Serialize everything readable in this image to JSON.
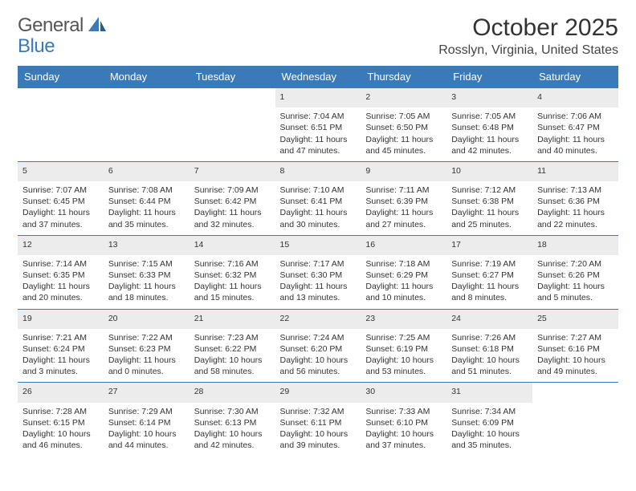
{
  "logo": {
    "general": "General",
    "blue": "Blue"
  },
  "title": "October 2025",
  "location": "Rosslyn, Virginia, United States",
  "colors": {
    "header_bg": "#3b7ab8",
    "header_text": "#ffffff",
    "daynum_bg": "#ececec",
    "border": "#3b7ab8",
    "body_text": "#333333"
  },
  "dayNames": [
    "Sunday",
    "Monday",
    "Tuesday",
    "Wednesday",
    "Thursday",
    "Friday",
    "Saturday"
  ],
  "weeks": [
    [
      null,
      null,
      null,
      {
        "n": "1",
        "sr": "7:04 AM",
        "ss": "6:51 PM",
        "dl": "11 hours and 47 minutes."
      },
      {
        "n": "2",
        "sr": "7:05 AM",
        "ss": "6:50 PM",
        "dl": "11 hours and 45 minutes."
      },
      {
        "n": "3",
        "sr": "7:05 AM",
        "ss": "6:48 PM",
        "dl": "11 hours and 42 minutes."
      },
      {
        "n": "4",
        "sr": "7:06 AM",
        "ss": "6:47 PM",
        "dl": "11 hours and 40 minutes."
      }
    ],
    [
      {
        "n": "5",
        "sr": "7:07 AM",
        "ss": "6:45 PM",
        "dl": "11 hours and 37 minutes."
      },
      {
        "n": "6",
        "sr": "7:08 AM",
        "ss": "6:44 PM",
        "dl": "11 hours and 35 minutes."
      },
      {
        "n": "7",
        "sr": "7:09 AM",
        "ss": "6:42 PM",
        "dl": "11 hours and 32 minutes."
      },
      {
        "n": "8",
        "sr": "7:10 AM",
        "ss": "6:41 PM",
        "dl": "11 hours and 30 minutes."
      },
      {
        "n": "9",
        "sr": "7:11 AM",
        "ss": "6:39 PM",
        "dl": "11 hours and 27 minutes."
      },
      {
        "n": "10",
        "sr": "7:12 AM",
        "ss": "6:38 PM",
        "dl": "11 hours and 25 minutes."
      },
      {
        "n": "11",
        "sr": "7:13 AM",
        "ss": "6:36 PM",
        "dl": "11 hours and 22 minutes."
      }
    ],
    [
      {
        "n": "12",
        "sr": "7:14 AM",
        "ss": "6:35 PM",
        "dl": "11 hours and 20 minutes."
      },
      {
        "n": "13",
        "sr": "7:15 AM",
        "ss": "6:33 PM",
        "dl": "11 hours and 18 minutes."
      },
      {
        "n": "14",
        "sr": "7:16 AM",
        "ss": "6:32 PM",
        "dl": "11 hours and 15 minutes."
      },
      {
        "n": "15",
        "sr": "7:17 AM",
        "ss": "6:30 PM",
        "dl": "11 hours and 13 minutes."
      },
      {
        "n": "16",
        "sr": "7:18 AM",
        "ss": "6:29 PM",
        "dl": "11 hours and 10 minutes."
      },
      {
        "n": "17",
        "sr": "7:19 AM",
        "ss": "6:27 PM",
        "dl": "11 hours and 8 minutes."
      },
      {
        "n": "18",
        "sr": "7:20 AM",
        "ss": "6:26 PM",
        "dl": "11 hours and 5 minutes."
      }
    ],
    [
      {
        "n": "19",
        "sr": "7:21 AM",
        "ss": "6:24 PM",
        "dl": "11 hours and 3 minutes."
      },
      {
        "n": "20",
        "sr": "7:22 AM",
        "ss": "6:23 PM",
        "dl": "11 hours and 0 minutes."
      },
      {
        "n": "21",
        "sr": "7:23 AM",
        "ss": "6:22 PM",
        "dl": "10 hours and 58 minutes."
      },
      {
        "n": "22",
        "sr": "7:24 AM",
        "ss": "6:20 PM",
        "dl": "10 hours and 56 minutes."
      },
      {
        "n": "23",
        "sr": "7:25 AM",
        "ss": "6:19 PM",
        "dl": "10 hours and 53 minutes."
      },
      {
        "n": "24",
        "sr": "7:26 AM",
        "ss": "6:18 PM",
        "dl": "10 hours and 51 minutes."
      },
      {
        "n": "25",
        "sr": "7:27 AM",
        "ss": "6:16 PM",
        "dl": "10 hours and 49 minutes."
      }
    ],
    [
      {
        "n": "26",
        "sr": "7:28 AM",
        "ss": "6:15 PM",
        "dl": "10 hours and 46 minutes."
      },
      {
        "n": "27",
        "sr": "7:29 AM",
        "ss": "6:14 PM",
        "dl": "10 hours and 44 minutes."
      },
      {
        "n": "28",
        "sr": "7:30 AM",
        "ss": "6:13 PM",
        "dl": "10 hours and 42 minutes."
      },
      {
        "n": "29",
        "sr": "7:32 AM",
        "ss": "6:11 PM",
        "dl": "10 hours and 39 minutes."
      },
      {
        "n": "30",
        "sr": "7:33 AM",
        "ss": "6:10 PM",
        "dl": "10 hours and 37 minutes."
      },
      {
        "n": "31",
        "sr": "7:34 AM",
        "ss": "6:09 PM",
        "dl": "10 hours and 35 minutes."
      },
      null
    ]
  ],
  "labels": {
    "sunrise": "Sunrise: ",
    "sunset": "Sunset: ",
    "daylight": "Daylight: "
  }
}
